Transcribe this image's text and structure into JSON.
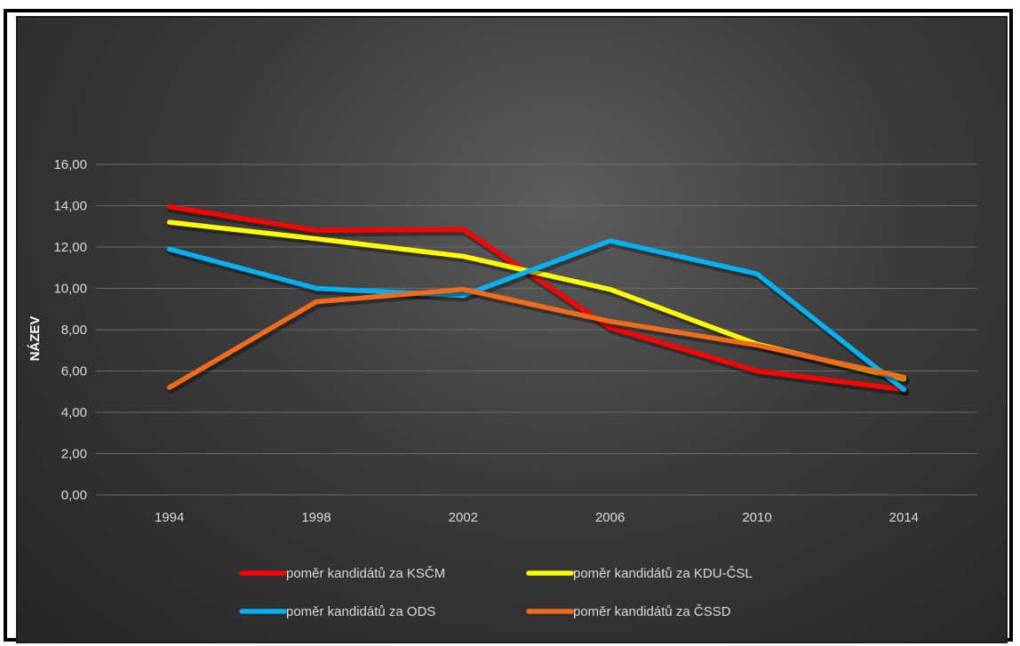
{
  "chart_data": {
    "type": "line",
    "title": "",
    "xlabel": "",
    "ylabel": "NÁZEV",
    "categories": [
      "1994",
      "1998",
      "2002",
      "2006",
      "2010",
      "2014"
    ],
    "ylim": [
      0,
      16
    ],
    "yticks": [
      "0,00",
      "2,00",
      "4,00",
      "6,00",
      "8,00",
      "10,00",
      "12,00",
      "14,00",
      "16,00"
    ],
    "grid": true,
    "legend_position": "bottom",
    "series": [
      {
        "name": "poměr kandidátů  za KSČM",
        "color": "#ff0000",
        "values": [
          13.95,
          12.8,
          12.85,
          8.1,
          6.0,
          5.1
        ]
      },
      {
        "name": "poměr kandidátů za KDU-ČSL",
        "color": "#ffff00",
        "values": [
          13.2,
          12.4,
          11.55,
          9.95,
          7.3,
          5.6
        ]
      },
      {
        "name": "poměr kandidátů za ODS",
        "color": "#00b0f0",
        "values": [
          11.9,
          10.0,
          9.65,
          12.3,
          10.7,
          5.1
        ]
      },
      {
        "name": "poměr kandidátů za ČSSD",
        "color": "#f26a1b",
        "values": [
          5.2,
          9.35,
          9.95,
          8.4,
          7.25,
          5.7
        ]
      }
    ]
  }
}
